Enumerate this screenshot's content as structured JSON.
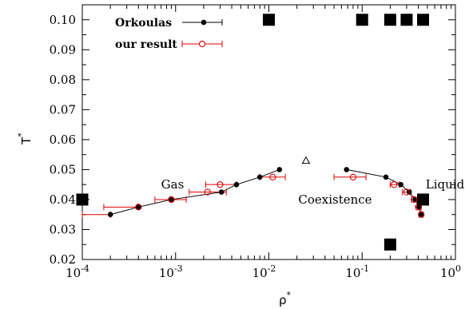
{
  "chart_data": {
    "type": "scatter",
    "title": "",
    "xlabel": "ρ",
    "xlabel_sup": "*",
    "ylabel": "T",
    "ylabel_sup": "*",
    "xscale": "log",
    "xlim": [
      0.0001,
      1
    ],
    "ylim": [
      0.02,
      0.105
    ],
    "x_tick_labels": [
      {
        "value": 0.0001,
        "base": "10",
        "exp": "-4"
      },
      {
        "value": 0.001,
        "base": "10",
        "exp": "-3"
      },
      {
        "value": 0.01,
        "base": "10",
        "exp": "-2"
      },
      {
        "value": 0.1,
        "base": "10",
        "exp": "-1"
      },
      {
        "value": 1,
        "base": "10",
        "exp": "0"
      }
    ],
    "y_tick_labels": [
      "0.02",
      "0.03",
      "0.04",
      "0.05",
      "0.06",
      "0.07",
      "0.08",
      "0.09",
      "0.10"
    ],
    "y_tick_values": [
      0.02,
      0.03,
      0.04,
      0.05,
      0.06,
      0.07,
      0.08,
      0.09,
      0.1
    ],
    "grid": false,
    "legend_position": "top-left",
    "colors": {
      "orkoulas": "#000000",
      "ours": "#dd0000",
      "squares": "#000000"
    },
    "series": [
      {
        "name": "Orkoulas",
        "marker": "filled-circle",
        "connect": "gas-liquid-branches",
        "gas": [
          {
            "x": 0.0002,
            "y": 0.035
          },
          {
            "x": 0.0004,
            "y": 0.0375
          },
          {
            "x": 0.0009,
            "y": 0.04
          },
          {
            "x": 0.0031,
            "y": 0.0425
          },
          {
            "x": 0.0045,
            "y": 0.045
          },
          {
            "x": 0.008,
            "y": 0.0475
          },
          {
            "x": 0.013,
            "y": 0.05
          }
        ],
        "liquid": [
          {
            "x": 0.068,
            "y": 0.05
          },
          {
            "x": 0.18,
            "y": 0.0475
          },
          {
            "x": 0.26,
            "y": 0.045
          },
          {
            "x": 0.32,
            "y": 0.0425
          },
          {
            "x": 0.37,
            "y": 0.04
          },
          {
            "x": 0.41,
            "y": 0.0375
          },
          {
            "x": 0.43,
            "y": 0.035
          }
        ]
      },
      {
        "name": "our result",
        "marker": "open-circle",
        "points": [
          {
            "x": 0.0004,
            "y": 0.0375,
            "xerr": [
              0.00017,
              0.0004
            ]
          },
          {
            "x": 0.0009,
            "y": 0.04,
            "xerr": [
              0.0006,
              0.0013
            ]
          },
          {
            "x": 0.0022,
            "y": 0.0425,
            "xerr": [
              0.0014,
              0.0035
            ]
          },
          {
            "x": 0.003,
            "y": 0.045,
            "xerr": [
              0.0021,
              0.0045
            ]
          },
          {
            "x": 0.011,
            "y": 0.0475,
            "xerr": [
              0.008,
              0.015
            ]
          },
          {
            "x": 0.08,
            "y": 0.0475,
            "xerr": [
              0.05,
              0.11
            ]
          },
          {
            "x": 0.22,
            "y": 0.045,
            "xerr": [
              0.2,
              0.25
            ]
          },
          {
            "x": 0.3,
            "y": 0.0425,
            "xerr": [
              0.27,
              0.33
            ]
          },
          {
            "x": 0.36,
            "y": 0.04,
            "xerr": [
              0.34,
              0.39
            ]
          },
          {
            "x": 0.4,
            "y": 0.0375,
            "xerr": [
              0.38,
              0.43
            ]
          },
          {
            "x": 0.43,
            "y": 0.035,
            "xerr": [
              0.41,
              0.45
            ]
          }
        ],
        "gas_extra_errorbar": {
          "x": 0.0002,
          "y": 0.035,
          "xerr": [
            0.0001,
            0.0002
          ]
        }
      }
    ],
    "critical_point": {
      "x": 0.025,
      "y": 0.053,
      "marker": "open-triangle"
    },
    "squares": [
      {
        "x": 0.0001,
        "y": 0.04
      },
      {
        "x": 0.01,
        "y": 0.1
      },
      {
        "x": 0.1,
        "y": 0.1
      },
      {
        "x": 0.2,
        "y": 0.1
      },
      {
        "x": 0.3,
        "y": 0.1
      },
      {
        "x": 0.45,
        "y": 0.1
      },
      {
        "x": 0.2,
        "y": 0.025
      },
      {
        "x": 0.45,
        "y": 0.04
      }
    ],
    "annotations": [
      {
        "text": "Gas",
        "x": 0.0007,
        "y": 0.045
      },
      {
        "text": "Coexistence",
        "x": 0.0207,
        "y": 0.04
      },
      {
        "text": "Liquid",
        "x": 0.48,
        "y": 0.045
      }
    ]
  }
}
